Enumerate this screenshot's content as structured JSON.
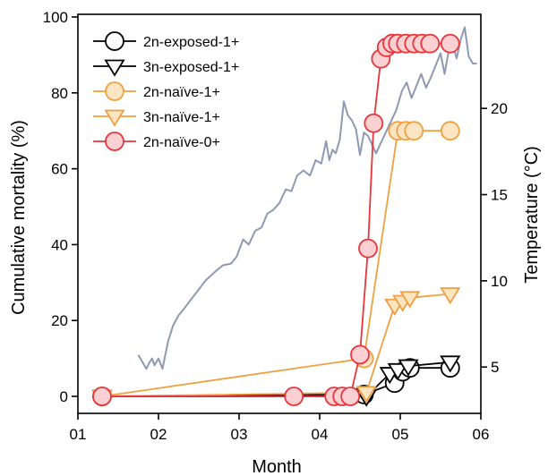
{
  "chart_data": {
    "type": "line",
    "xlabel": "Month",
    "ylabel": "Cumulative mortality (%)",
    "y2label": "Temperature (°C)",
    "xlim": [
      1,
      6
    ],
    "ylim": [
      0,
      100
    ],
    "y2lim": [
      3.3,
      25.3
    ],
    "x_ticks": [
      {
        "value": 1,
        "label": "01"
      },
      {
        "value": 2,
        "label": "02"
      },
      {
        "value": 3,
        "label": "03"
      },
      {
        "value": 4,
        "label": "04"
      },
      {
        "value": 5,
        "label": "05"
      },
      {
        "value": 6,
        "label": "06"
      }
    ],
    "y_ticks": [
      0,
      20,
      40,
      60,
      80,
      100
    ],
    "y2_ticks": [
      5,
      10,
      15,
      20
    ],
    "grid": false,
    "legend_position": "top-left",
    "series": [
      {
        "name": "2n-exposed-1+",
        "marker": "circle",
        "color": "#000000",
        "fill": "#ffffff",
        "x": [
          1.3,
          4.55,
          4.93,
          5.03,
          5.12,
          5.62
        ],
        "y": [
          0,
          0.5,
          3.5,
          6.5,
          7.5,
          7.5
        ]
      },
      {
        "name": "3n-exposed-1+",
        "marker": "triangle-down",
        "color": "#000000",
        "fill": "#ffffff",
        "x": [
          1.3,
          4.58,
          4.87,
          4.97,
          5.1,
          5.62
        ],
        "y": [
          0,
          0,
          6,
          7,
          8,
          9
        ]
      },
      {
        "name": "2n-naïve-1+",
        "marker": "circle",
        "color": "#f0a040",
        "fill": "#fde5c4",
        "x": [
          1.3,
          4.55,
          4.97,
          5.07,
          5.17,
          5.62
        ],
        "y": [
          0,
          10,
          70,
          70,
          70,
          70
        ]
      },
      {
        "name": "3n-naïve-1+",
        "marker": "triangle-down",
        "color": "#f0a040",
        "fill": "#fde5c4",
        "x": [
          1.3,
          4.58,
          4.93,
          5.03,
          5.12,
          5.62
        ],
        "y": [
          0,
          1,
          24,
          25,
          26,
          27
        ]
      },
      {
        "name": "2n-naïve-0+",
        "marker": "circle",
        "color": "#e8363c",
        "fill": "#fbd0d2",
        "x": [
          1.3,
          3.68,
          4.18,
          4.28,
          4.38,
          4.5,
          4.6,
          4.67,
          4.76,
          4.83,
          4.9,
          4.97,
          5.07,
          5.17,
          5.27,
          5.37,
          5.62
        ],
        "y": [
          0,
          0,
          0,
          0,
          0,
          11,
          39,
          72,
          89,
          92,
          93,
          93,
          93,
          93,
          93,
          93,
          93
        ]
      }
    ],
    "temperature": {
      "name": "Temperature",
      "axis": "right",
      "color": "#8f99b3",
      "x": [
        1.75,
        1.8,
        1.85,
        1.88,
        1.92,
        1.95,
        2.0,
        2.05,
        2.08,
        2.12,
        2.18,
        2.25,
        2.32,
        2.4,
        2.5,
        2.58,
        2.65,
        2.72,
        2.8,
        2.9,
        2.97,
        3.05,
        3.12,
        3.2,
        3.28,
        3.35,
        3.42,
        3.5,
        3.58,
        3.65,
        3.72,
        3.8,
        3.88,
        3.95,
        4.02,
        4.08,
        4.12,
        4.16,
        4.2,
        4.25,
        4.3,
        4.35,
        4.4,
        4.45,
        4.5,
        4.55,
        4.6,
        4.65,
        4.7,
        4.75,
        4.8,
        4.88,
        4.95,
        5.02,
        5.08,
        5.14,
        5.2,
        5.26,
        5.32,
        5.38,
        5.44,
        5.5,
        5.55,
        5.6,
        5.65,
        5.7,
        5.75,
        5.8,
        5.85,
        5.9,
        5.95
      ],
      "y": [
        5.7,
        5.3,
        4.9,
        5.2,
        5.5,
        5.1,
        5.5,
        4.9,
        5.6,
        6.5,
        7.4,
        8.0,
        8.4,
        8.9,
        9.5,
        10.0,
        10.3,
        10.6,
        10.9,
        11.0,
        11.4,
        12.4,
        12.1,
        12.9,
        13.1,
        13.9,
        14.1,
        14.5,
        15.3,
        15.2,
        16.1,
        16.4,
        16.1,
        17.0,
        16.8,
        18.1,
        17.0,
        17.6,
        17.4,
        18.2,
        20.4,
        19.6,
        19.3,
        18.8,
        17.3,
        18.6,
        18.4,
        17.9,
        17.4,
        17.9,
        18.4,
        19.2,
        19.9,
        21.0,
        21.5,
        20.6,
        21.3,
        22.0,
        21.2,
        21.8,
        22.5,
        23.2,
        22.0,
        23.3,
        23.7,
        22.9,
        24.0,
        24.7,
        23.0,
        22.6,
        22.6
      ]
    }
  }
}
